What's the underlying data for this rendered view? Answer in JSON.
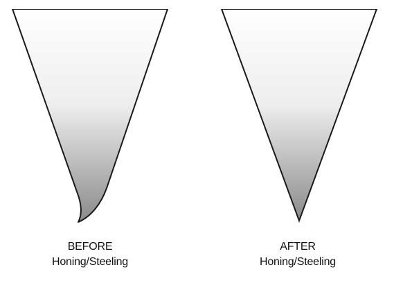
{
  "colors": {
    "outline": "#1a1a1a",
    "gradient_top": "#ffffff",
    "gradient_bottom": "#8a8a8a",
    "background": "#ffffff"
  },
  "panels": [
    {
      "id": "before",
      "caption_line1": "BEFORE",
      "caption_line2": "Honing/Steeling"
    },
    {
      "id": "after",
      "caption_line1": "AFTER",
      "caption_line2": "Honing/Steeling"
    }
  ]
}
